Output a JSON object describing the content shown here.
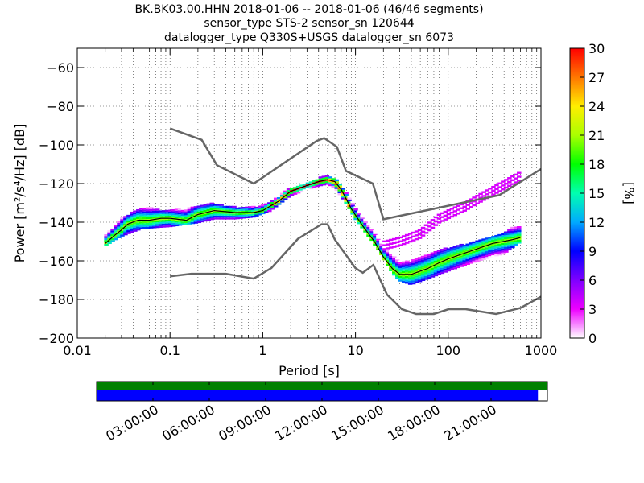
{
  "header": {
    "title_line1": "BK.BK03.00.HHN   2018-01-06 -- 2018-01-06  (46/46 segments)",
    "title_line2": "sensor_type STS-2 sensor_sn 120644",
    "title_line3": "datalogger_type Q330S+USGS datalogger_sn 6073"
  },
  "chart_data": {
    "type": "heatmap",
    "xlabel": "Period [s]",
    "ylabel": "Power [m²/s⁴/Hz] [dB]",
    "xscale": "log",
    "xlim": [
      0.01,
      1000
    ],
    "ylim": [
      -200,
      -50
    ],
    "x_ticks": [
      {
        "v": 0.01,
        "label": "0.01"
      },
      {
        "v": 0.1,
        "label": "0.1"
      },
      {
        "v": 1,
        "label": "1"
      },
      {
        "v": 10,
        "label": "10"
      },
      {
        "v": 100,
        "label": "100"
      },
      {
        "v": 1000,
        "label": "1000"
      }
    ],
    "y_ticks": [
      {
        "v": -60,
        "label": "−60"
      },
      {
        "v": -80,
        "label": "−80"
      },
      {
        "v": -100,
        "label": "−100"
      },
      {
        "v": -120,
        "label": "−120"
      },
      {
        "v": -140,
        "label": "−140"
      },
      {
        "v": -160,
        "label": "−160"
      },
      {
        "v": -180,
        "label": "−180"
      },
      {
        "v": -200,
        "label": "−200"
      }
    ],
    "grid": true,
    "colorbar": {
      "label": "[%]",
      "range": [
        0,
        30
      ],
      "ticks": [
        {
          "v": 0,
          "label": "0"
        },
        {
          "v": 3,
          "label": "3"
        },
        {
          "v": 6,
          "label": "6"
        },
        {
          "v": 9,
          "label": "9"
        },
        {
          "v": 12,
          "label": "12"
        },
        {
          "v": 15,
          "label": "15"
        },
        {
          "v": 18,
          "label": "18"
        },
        {
          "v": 21,
          "label": "21"
        },
        {
          "v": 24,
          "label": "24"
        },
        {
          "v": 27,
          "label": "27"
        },
        {
          "v": 30,
          "label": "30"
        }
      ]
    },
    "nhnm": [
      [
        0.1,
        -91.5
      ],
      [
        0.22,
        -97.4
      ],
      [
        0.32,
        -110.5
      ],
      [
        0.8,
        -120
      ],
      [
        3.8,
        -98
      ],
      [
        4.6,
        -96.5
      ],
      [
        6.3,
        -101
      ],
      [
        7.9,
        -113.5
      ],
      [
        15.4,
        -120
      ],
      [
        20,
        -138.5
      ],
      [
        354.8,
        -126
      ],
      [
        1000,
        -112.5
      ]
    ],
    "nlnm": [
      [
        0.1,
        -168
      ],
      [
        0.17,
        -166.7
      ],
      [
        0.4,
        -166.7
      ],
      [
        0.8,
        -169.2
      ],
      [
        1.24,
        -163.7
      ],
      [
        2.4,
        -148.6
      ],
      [
        4.3,
        -141.1
      ],
      [
        5,
        -141.1
      ],
      [
        6,
        -149
      ],
      [
        10,
        -163.8
      ],
      [
        12,
        -166.2
      ],
      [
        15.6,
        -162.1
      ],
      [
        21.9,
        -177.5
      ],
      [
        31.6,
        -185
      ],
      [
        45,
        -187.5
      ],
      [
        70,
        -187.5
      ],
      [
        101,
        -185
      ],
      [
        154,
        -185
      ],
      [
        328,
        -187.5
      ],
      [
        600,
        -184.4
      ],
      [
        1000,
        -178.6
      ]
    ],
    "mode_curve": [
      [
        0.02,
        -151
      ],
      [
        0.025,
        -147
      ],
      [
        0.03,
        -144
      ],
      [
        0.035,
        -141
      ],
      [
        0.045,
        -139
      ],
      [
        0.06,
        -139
      ],
      [
        0.08,
        -138
      ],
      [
        0.1,
        -138
      ],
      [
        0.15,
        -139
      ],
      [
        0.2,
        -136
      ],
      [
        0.3,
        -134
      ],
      [
        0.5,
        -135
      ],
      [
        0.8,
        -135
      ],
      [
        1,
        -134
      ],
      [
        1.5,
        -129
      ],
      [
        2,
        -124
      ],
      [
        3,
        -121
      ],
      [
        4,
        -119
      ],
      [
        5,
        -118
      ],
      [
        6,
        -119
      ],
      [
        7,
        -123
      ],
      [
        9,
        -133
      ],
      [
        12,
        -142
      ],
      [
        16,
        -150
      ],
      [
        20,
        -158
      ],
      [
        25,
        -164
      ],
      [
        30,
        -167
      ],
      [
        40,
        -167
      ],
      [
        60,
        -164
      ],
      [
        80,
        -161
      ],
      [
        100,
        -159
      ],
      [
        150,
        -156
      ],
      [
        200,
        -154
      ],
      [
        300,
        -151
      ],
      [
        500,
        -149
      ],
      [
        600,
        -148
      ]
    ],
    "density_band": [
      [
        0.02,
        -152,
        -146
      ],
      [
        0.03,
        -147,
        -138
      ],
      [
        0.05,
        -143,
        -132
      ],
      [
        0.1,
        -142,
        -134
      ],
      [
        0.2,
        -140,
        -131
      ],
      [
        0.3,
        -138,
        -130
      ],
      [
        0.5,
        -138,
        -132
      ],
      [
        0.8,
        -137,
        -132
      ],
      [
        1.2,
        -134,
        -130
      ],
      [
        2,
        -126,
        -122
      ],
      [
        3,
        -123,
        -120
      ],
      [
        4,
        -121,
        -117
      ],
      [
        5,
        -120,
        -116
      ],
      [
        6,
        -122,
        -117
      ],
      [
        8,
        -130,
        -124
      ],
      [
        10,
        -138,
        -132
      ],
      [
        15,
        -149,
        -142
      ],
      [
        20,
        -158,
        -150
      ],
      [
        25,
        -166,
        -155
      ],
      [
        30,
        -170,
        -160
      ],
      [
        40,
        -172,
        -160
      ],
      [
        60,
        -169,
        -157
      ],
      [
        100,
        -165,
        -153
      ],
      [
        200,
        -160,
        -150
      ],
      [
        400,
        -156,
        -146
      ],
      [
        600,
        -150,
        -140
      ]
    ],
    "outlier_band": [
      [
        20,
        -154,
        -150
      ],
      [
        30,
        -152,
        -148
      ],
      [
        50,
        -148,
        -143
      ],
      [
        80,
        -140,
        -136
      ],
      [
        150,
        -134,
        -129
      ],
      [
        250,
        -128,
        -123
      ],
      [
        600,
        -118,
        -114
      ]
    ]
  },
  "timeline": {
    "labels": [
      "03:00:00",
      "06:00:00",
      "09:00:00",
      "12:00:00",
      "15:00:00",
      "18:00:00",
      "21:00:00"
    ],
    "coverage_fraction": 0.979,
    "colors": {
      "top": "#008000",
      "bottom": "#0000ff"
    }
  }
}
